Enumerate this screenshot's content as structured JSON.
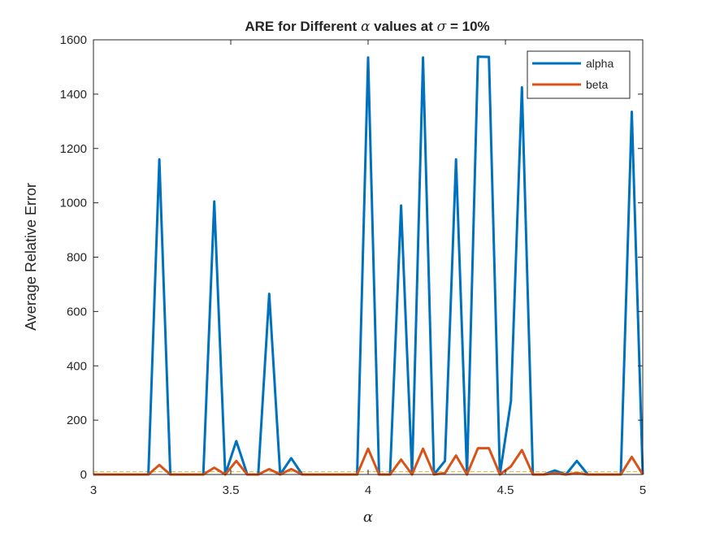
{
  "chart_data": {
    "type": "line",
    "title": {
      "prefix": "ARE for Different ",
      "symbol1": "α",
      "middle": " values at ",
      "symbol2": "σ",
      "suffix": " = 10%"
    },
    "xlabel": "α",
    "ylabel": "Average Relative Error",
    "xlim": [
      3,
      5
    ],
    "ylim": [
      0,
      1600
    ],
    "xticks": [
      3,
      3.5,
      4,
      4.5,
      5
    ],
    "xtick_labels": [
      "3",
      "3.5",
      "4",
      "4.5",
      "5"
    ],
    "yticks": [
      0,
      200,
      400,
      600,
      800,
      1000,
      1200,
      1400,
      1600
    ],
    "ytick_labels": [
      "0",
      "200",
      "400",
      "600",
      "800",
      "1000",
      "1200",
      "1400",
      "1600"
    ],
    "legend_position": "top-right",
    "grid": false,
    "reference_line": {
      "y": 10,
      "color": "#EDB120",
      "style": "dashed"
    },
    "x": [
      3.0,
      3.04,
      3.08,
      3.12,
      3.16,
      3.2,
      3.24,
      3.28,
      3.32,
      3.36,
      3.4,
      3.44,
      3.48,
      3.52,
      3.56,
      3.6,
      3.64,
      3.68,
      3.72,
      3.76,
      3.8,
      3.84,
      3.88,
      3.92,
      3.96,
      4.0,
      4.04,
      4.08,
      4.12,
      4.16,
      4.2,
      4.24,
      4.28,
      4.32,
      4.36,
      4.4,
      4.44,
      4.48,
      4.52,
      4.56,
      4.6,
      4.64,
      4.68,
      4.72,
      4.76,
      4.8,
      4.84,
      4.88,
      4.92,
      4.96,
      5.0
    ],
    "series": [
      {
        "name": "alpha",
        "color": "#0072BD",
        "values": [
          0,
          0,
          0,
          0,
          0,
          0,
          1160,
          0,
          0,
          0,
          0,
          1005,
          0,
          123,
          0,
          0,
          665,
          0,
          60,
          0,
          0,
          0,
          0,
          0,
          0,
          1535,
          0,
          0,
          990,
          0,
          1535,
          0,
          50,
          1160,
          0,
          1538,
          1537,
          0,
          270,
          1425,
          0,
          0,
          15,
          0,
          50,
          0,
          0,
          0,
          0,
          1335,
          0
        ]
      },
      {
        "name": "beta",
        "color": "#D95319",
        "values": [
          0,
          0,
          0,
          0,
          0,
          0,
          35,
          0,
          0,
          0,
          0,
          25,
          0,
          50,
          0,
          0,
          20,
          0,
          20,
          0,
          0,
          0,
          0,
          0,
          0,
          95,
          0,
          0,
          55,
          0,
          95,
          0,
          5,
          70,
          0,
          97,
          97,
          0,
          30,
          90,
          0,
          0,
          5,
          0,
          5,
          0,
          0,
          0,
          0,
          65,
          0
        ]
      }
    ]
  }
}
